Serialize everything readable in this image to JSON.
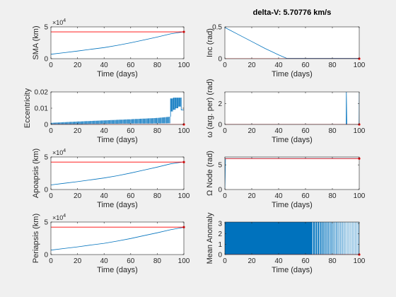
{
  "figure": {
    "title": "delta-V: 5.70776 km/s",
    "background": "#f0f0f0",
    "series_color": "#0072bd",
    "target_color": "#ff0000"
  },
  "chart_data": [
    {
      "id": "sma",
      "type": "line",
      "ylabel": "SMA (km)",
      "xlabel": "Time (days)",
      "xlim": [
        0,
        100
      ],
      "ylim": [
        0,
        50000
      ],
      "xticks": [
        "0",
        "20",
        "40",
        "60",
        "80",
        "100"
      ],
      "yticks": [
        "0",
        "5"
      ],
      "ytick_values": [
        0,
        50000
      ],
      "exponent": "×10^4",
      "x": [
        0,
        10,
        20,
        30,
        40,
        50,
        60,
        70,
        80,
        90,
        100
      ],
      "y": [
        7000,
        9500,
        12000,
        14800,
        17500,
        21000,
        25000,
        29500,
        34000,
        39000,
        42200
      ],
      "target": 42164
    },
    {
      "id": "inc",
      "type": "line",
      "ylabel": "Inc (rad)",
      "xlabel": "Time (days)",
      "xlim": [
        0,
        100
      ],
      "ylim": [
        0,
        0.5
      ],
      "xticks": [
        "0",
        "20",
        "40",
        "60",
        "80",
        "100"
      ],
      "yticks": [
        "0",
        "0.5"
      ],
      "ytick_values": [
        0,
        0.5
      ],
      "x": [
        0,
        10,
        20,
        30,
        40,
        46,
        60,
        80,
        100
      ],
      "y": [
        0.49,
        0.38,
        0.27,
        0.16,
        0.06,
        0.005,
        0.005,
        0.005,
        0.005
      ],
      "target": 0
    },
    {
      "id": "ecc",
      "type": "line",
      "ylabel": "Eccentricity",
      "xlabel": "Time (days)",
      "xlim": [
        0,
        100
      ],
      "ylim": [
        0,
        0.02
      ],
      "xticks": [
        "0",
        "20",
        "40",
        "60",
        "80",
        "100"
      ],
      "yticks": [
        "0",
        "0.01",
        "0.02"
      ],
      "ytick_values": [
        0,
        0.01,
        0.02
      ],
      "oscillation": {
        "x_end": 100,
        "low": [
          0,
          0.0002,
          0.0004,
          0.0005,
          0.0006,
          0.0007
        ],
        "high": [
          0.001,
          0.0018,
          0.0025,
          0.0032,
          0.004,
          0.0048
        ],
        "x_knots": [
          0,
          20,
          40,
          60,
          80,
          90
        ]
      },
      "spike": {
        "x": [
          90,
          92,
          94,
          96,
          98
        ],
        "low": [
          0.008,
          0.009,
          0.01,
          0.011,
          0.011
        ],
        "high": [
          0.016,
          0.0165,
          0.0165,
          0.0165,
          0.0165
        ]
      },
      "target": 0
    },
    {
      "id": "argper",
      "type": "line",
      "ylabel": "ω (arg. per) (rad)",
      "xlabel": "Time (days)",
      "xlim": [
        0,
        100
      ],
      "ylim": [
        0,
        3.14
      ],
      "xticks": [
        "0",
        "20",
        "40",
        "60",
        "80",
        "100"
      ],
      "yticks": [
        "0",
        "2"
      ],
      "ytick_values": [
        0,
        2
      ],
      "x": [
        0,
        90.3,
        90.4,
        90.8,
        99.9,
        100
      ],
      "y": [
        0,
        0,
        3.14,
        0,
        0,
        3.14
      ],
      "target": 0
    },
    {
      "id": "apo",
      "type": "line",
      "ylabel": "Apoapsis (km)",
      "xlabel": "Time (days)",
      "xlim": [
        0,
        100
      ],
      "ylim": [
        0,
        50000
      ],
      "xticks": [
        "0",
        "20",
        "40",
        "60",
        "80",
        "100"
      ],
      "yticks": [
        "0",
        "5"
      ],
      "ytick_values": [
        0,
        50000
      ],
      "exponent": "×10^4",
      "x": [
        0,
        10,
        20,
        30,
        40,
        50,
        60,
        70,
        80,
        90,
        100
      ],
      "y": [
        7100,
        9600,
        12100,
        14900,
        17700,
        21200,
        25300,
        29900,
        34500,
        39500,
        42500
      ],
      "target": 42164
    },
    {
      "id": "node",
      "type": "line",
      "ylabel": "Ω Node (rad)",
      "xlabel": "Time (days)",
      "xlim": [
        0,
        100
      ],
      "ylim": [
        0,
        6.6
      ],
      "xticks": [
        "0",
        "20",
        "40",
        "60",
        "80",
        "100"
      ],
      "yticks": [
        "0",
        "5"
      ],
      "ytick_values": [
        0,
        5
      ],
      "x": [
        0,
        0.5,
        1,
        50,
        100
      ],
      "y": [
        0,
        6.28,
        6.28,
        6.28,
        6.28
      ],
      "target": 6.28
    },
    {
      "id": "peri",
      "type": "line",
      "ylabel": "Periapsis (km)",
      "xlabel": "Time (days)",
      "xlim": [
        0,
        100
      ],
      "ylim": [
        0,
        50000
      ],
      "xticks": [
        "0",
        "20",
        "40",
        "60",
        "80",
        "100"
      ],
      "yticks": [
        "0",
        "5"
      ],
      "ytick_values": [
        0,
        50000
      ],
      "exponent": "×10^4",
      "x": [
        0,
        10,
        20,
        30,
        40,
        50,
        60,
        70,
        80,
        90,
        100
      ],
      "y": [
        6900,
        9400,
        11900,
        14700,
        17300,
        20800,
        24700,
        29100,
        33500,
        38200,
        41800
      ],
      "target": 42164
    },
    {
      "id": "ma",
      "type": "area",
      "ylabel": "Mean Anomaly",
      "xlabel": "Time (days)",
      "xlim": [
        0,
        100
      ],
      "ylim": [
        0,
        3.14
      ],
      "xticks": [
        "0",
        "20",
        "40",
        "60",
        "80",
        "100"
      ],
      "yticks": [
        "0",
        "1",
        "2",
        "3"
      ],
      "ytick_values": [
        0,
        1,
        2,
        3
      ],
      "fill_until": 64,
      "fill_value": 3.14,
      "stripe_values": [
        65.5,
        67.2,
        68.8,
        70.3,
        71.7,
        73.0,
        74.2,
        75.3,
        76.4,
        77.5,
        78.5,
        79.5,
        80.5,
        81.4,
        82.3,
        83.2,
        84.1,
        84.9,
        85.7,
        86.5,
        87.3,
        88.1,
        88.9,
        89.6,
        90.3,
        91.0,
        91.7,
        92.4,
        93.1,
        93.8,
        94.5,
        95.2,
        95.9,
        96.6,
        97.3,
        98.0,
        98.7,
        99.4
      ],
      "target": 0
    }
  ]
}
